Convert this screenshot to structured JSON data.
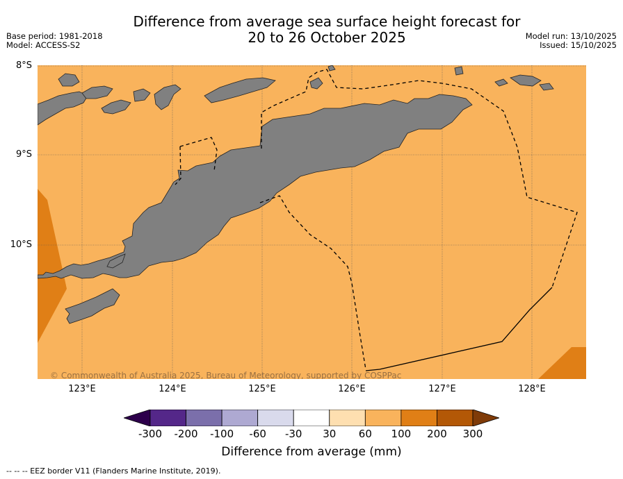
{
  "header": {
    "title_line1": "Difference from average sea surface height forecast for",
    "title_line2": "20 to 26 October 2025",
    "base_period": "Base period: 1981-2018",
    "model": "Model: ACCESS-S2",
    "model_run": "Model run: 13/10/2025",
    "issued": "Issued: 15/10/2025"
  },
  "map": {
    "lat_labels": [
      "8°S",
      "9°S",
      "10°S"
    ],
    "lon_labels": [
      "123°E",
      "124°E",
      "125°E",
      "126°E",
      "127°E",
      "128°E"
    ],
    "copyright": "© Commonwealth of Australia 2025, Bureau of Meteorology, supported by COSPPac",
    "colors": {
      "background": "#f9b35c",
      "land": "#808080",
      "high": "#e07f16"
    }
  },
  "colorbar": {
    "ticks": [
      "-300",
      "-200",
      "-100",
      "-60",
      "-30",
      "30",
      "60",
      "100",
      "200",
      "300"
    ],
    "bin_colors": [
      "#542789",
      "#7b6fab",
      "#aea9d2",
      "#d9daec",
      "#ffffff",
      "#fedfb0",
      "#f9b35c",
      "#e07f16",
      "#b35806"
    ],
    "low_extend_color": "#2d004b",
    "high_extend_color": "#7f3b08",
    "title": "Difference from average (mm)"
  },
  "legend": {
    "eez_text": "--  --  -- EEZ border V11 (Flanders Marine Institute, 2019)."
  }
}
